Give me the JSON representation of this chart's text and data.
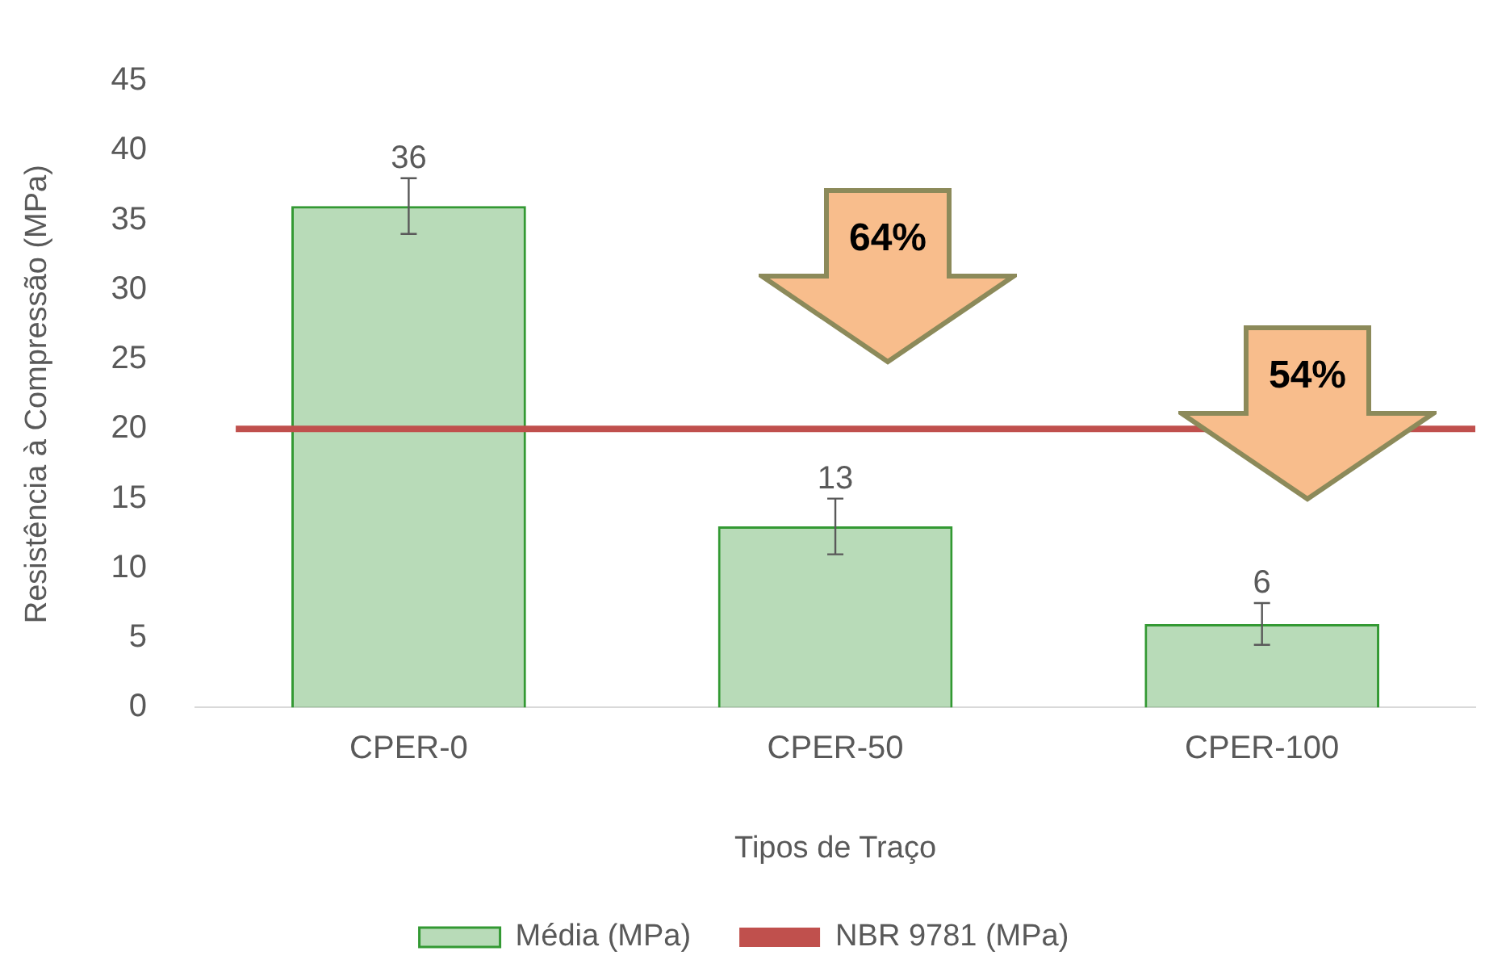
{
  "chart_data": {
    "type": "bar",
    "xlabel": "Tipos de Traço",
    "ylabel": "Resistência à Compressão (MPa)",
    "categories": [
      "CPER-0",
      "CPER-50",
      "CPER-100"
    ],
    "series": [
      {
        "name": "Média (MPa)",
        "color": "#339933",
        "values": [
          36,
          13,
          6
        ],
        "errors": [
          2,
          2,
          1.5
        ]
      }
    ],
    "ylim": [
      0,
      45
    ],
    "yticks": [
      0,
      5,
      10,
      15,
      20,
      25,
      30,
      35,
      40,
      45
    ],
    "grid": false,
    "data_labels": true,
    "legend": "bottom",
    "ref_lines": [
      {
        "axis": "y",
        "value": 20,
        "label": "NBR 9781 (MPa)",
        "color": "#c0504d"
      }
    ],
    "annotations": [
      "64%",
      "54%"
    ]
  }
}
